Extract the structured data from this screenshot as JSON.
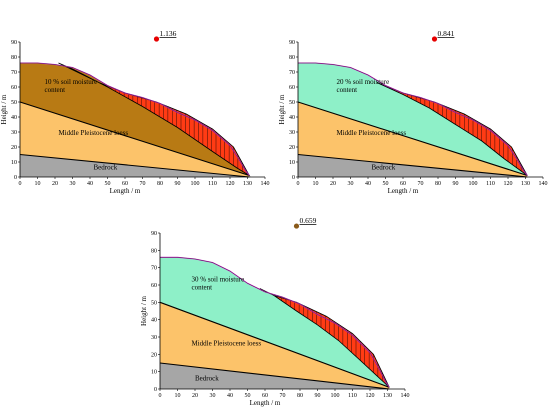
{
  "chart_data": [
    {
      "type": "area",
      "title": "",
      "xlabel": "Length / m",
      "ylabel": "Height / m",
      "xlim": [
        0,
        140
      ],
      "ylim": [
        0,
        90
      ],
      "x_ticks": [
        0,
        10,
        20,
        30,
        40,
        50,
        60,
        70,
        80,
        90,
        100,
        110,
        120,
        130,
        140
      ],
      "y_ticks": [
        0,
        10,
        20,
        30,
        40,
        50,
        60,
        70,
        80,
        90
      ],
      "factor_of_safety": "1.136",
      "fos_marker": {
        "x": 78,
        "y": 92,
        "color": "#e60000"
      },
      "moisture_label": "10 % soil moisture content",
      "moisture_color": "#b87a14",
      "labels": {
        "middle": "Middle Pleistocene loess",
        "bedrock": "Bedrock"
      },
      "slip": {
        "upper": [
          [
            22,
            76
          ],
          [
            45,
            63
          ],
          [
            60,
            56
          ],
          [
            78,
            50
          ],
          [
            95,
            42
          ],
          [
            110,
            32
          ],
          [
            122,
            20
          ],
          [
            131,
            1
          ]
        ],
        "lower": [
          [
            22,
            76
          ],
          [
            30,
            72
          ],
          [
            50,
            60
          ],
          [
            70,
            47
          ],
          [
            90,
            33
          ],
          [
            110,
            17
          ],
          [
            124,
            6
          ],
          [
            131,
            1
          ]
        ]
      }
    },
    {
      "type": "area",
      "title": "",
      "xlabel": "Length / m",
      "ylabel": "Height / m",
      "xlim": [
        0,
        140
      ],
      "ylim": [
        0,
        90
      ],
      "x_ticks": [
        0,
        10,
        20,
        30,
        40,
        50,
        60,
        70,
        80,
        90,
        100,
        110,
        120,
        130,
        140
      ],
      "y_ticks": [
        0,
        10,
        20,
        30,
        40,
        50,
        60,
        70,
        80,
        90
      ],
      "factor_of_safety": "0.841",
      "fos_marker": {
        "x": 78,
        "y": 92,
        "color": "#e60000"
      },
      "moisture_label": "20 % soil moisture content",
      "moisture_color": "#8ef0c8",
      "labels": {
        "middle": "Middle Pleistocene loess",
        "bedrock": "Bedrock"
      },
      "slip": {
        "upper": [
          [
            45,
            63
          ],
          [
            60,
            56
          ],
          [
            78,
            50
          ],
          [
            95,
            42
          ],
          [
            110,
            32
          ],
          [
            122,
            20
          ],
          [
            131,
            1
          ]
        ],
        "lower": [
          [
            45,
            63
          ],
          [
            60,
            55
          ],
          [
            75,
            46
          ],
          [
            90,
            35
          ],
          [
            105,
            24
          ],
          [
            118,
            12
          ],
          [
            131,
            1
          ]
        ]
      }
    },
    {
      "type": "area",
      "title": "",
      "xlabel": "Length / m",
      "ylabel": "Height / m",
      "xlim": [
        0,
        140
      ],
      "ylim": [
        0,
        90
      ],
      "x_ticks": [
        0,
        10,
        20,
        30,
        40,
        50,
        60,
        70,
        80,
        90,
        100,
        110,
        120,
        130,
        140
      ],
      "y_ticks": [
        0,
        10,
        20,
        30,
        40,
        50,
        60,
        70,
        80,
        90
      ],
      "factor_of_safety": "0.659",
      "fos_marker": {
        "x": 78,
        "y": 94,
        "color": "#8a5a1a"
      },
      "moisture_label": "30 % soil moisture content",
      "moisture_color": "#8ef0c8",
      "labels": {
        "middle": "Middle Pleistocene loess",
        "bedrock": "Bedrock"
      },
      "slip": {
        "upper": [
          [
            57,
            58
          ],
          [
            65,
            54
          ],
          [
            78,
            50
          ],
          [
            95,
            42
          ],
          [
            110,
            32
          ],
          [
            122,
            20
          ],
          [
            131,
            1
          ]
        ],
        "lower": [
          [
            57,
            58
          ],
          [
            65,
            54
          ],
          [
            78,
            45
          ],
          [
            90,
            37
          ],
          [
            102,
            28
          ],
          [
            115,
            16
          ],
          [
            131,
            1
          ]
        ]
      }
    }
  ],
  "profile": {
    "ground": [
      [
        0,
        76
      ],
      [
        10,
        76
      ],
      [
        20,
        75
      ],
      [
        30,
        73
      ],
      [
        40,
        68
      ],
      [
        50,
        61
      ],
      [
        60,
        56
      ],
      [
        70,
        53
      ],
      [
        80,
        49
      ],
      [
        90,
        43
      ],
      [
        100,
        38
      ],
      [
        110,
        31
      ],
      [
        120,
        21
      ],
      [
        125,
        12
      ],
      [
        129,
        4
      ],
      [
        131,
        1
      ]
    ],
    "middle_top": [
      [
        0,
        50
      ],
      [
        131,
        1
      ]
    ],
    "bedrock_top": [
      [
        0,
        15
      ],
      [
        131,
        0
      ]
    ]
  },
  "colors": {
    "middle_loess": "#fcc36a",
    "bedrock": "#a6a6a6",
    "slip": "#ff3b14",
    "ground_line": "#cc33cc"
  }
}
